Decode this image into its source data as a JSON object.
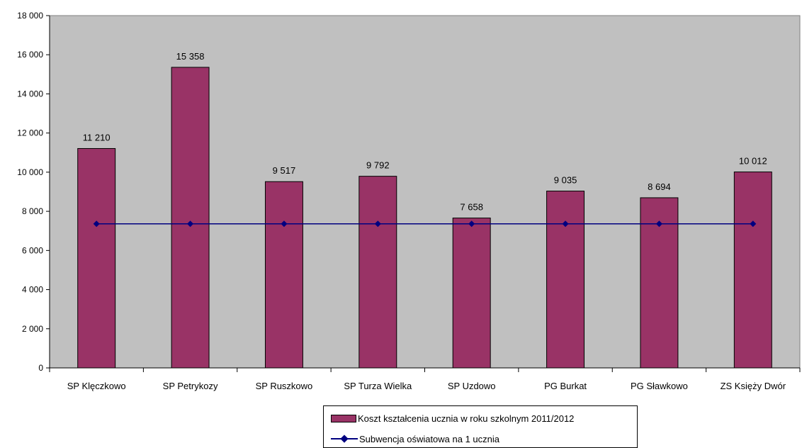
{
  "chart_data": {
    "type": "bar",
    "categories": [
      "SP Klęczkowo",
      "SP Petrykozy",
      "SP Ruszkowo",
      "SP Turza Wielka",
      "SP Uzdowo",
      "PG Burkat",
      "PG Sławkowo",
      "ZS Księży Dwór"
    ],
    "series": [
      {
        "name": "Koszt kształcenia ucznia w roku szkolnym 2011/2012",
        "type": "bar",
        "values": [
          11210,
          15358,
          9517,
          9792,
          7658,
          9035,
          8694,
          10012
        ],
        "labels": [
          "11 210",
          "15 358",
          "9 517",
          "9 792",
          "7 658",
          "9 035",
          "8 694",
          "10 012"
        ],
        "color": "#993366"
      },
      {
        "name": "Subwencja oświatowa na 1 ucznia",
        "type": "line",
        "values": [
          7360,
          7360,
          7360,
          7360,
          7360,
          7360,
          7360,
          7360
        ],
        "color": "#000080"
      }
    ],
    "y_ticks": [
      "0",
      "2 000",
      "4 000",
      "6 000",
      "8 000",
      "10 000",
      "12 000",
      "14 000",
      "16 000",
      "18 000"
    ],
    "ylim": [
      0,
      18000
    ],
    "grid": false,
    "legend_position": "bottom",
    "plot_background": "#c0c0c0",
    "title": "",
    "xlabel": "",
    "ylabel": ""
  }
}
